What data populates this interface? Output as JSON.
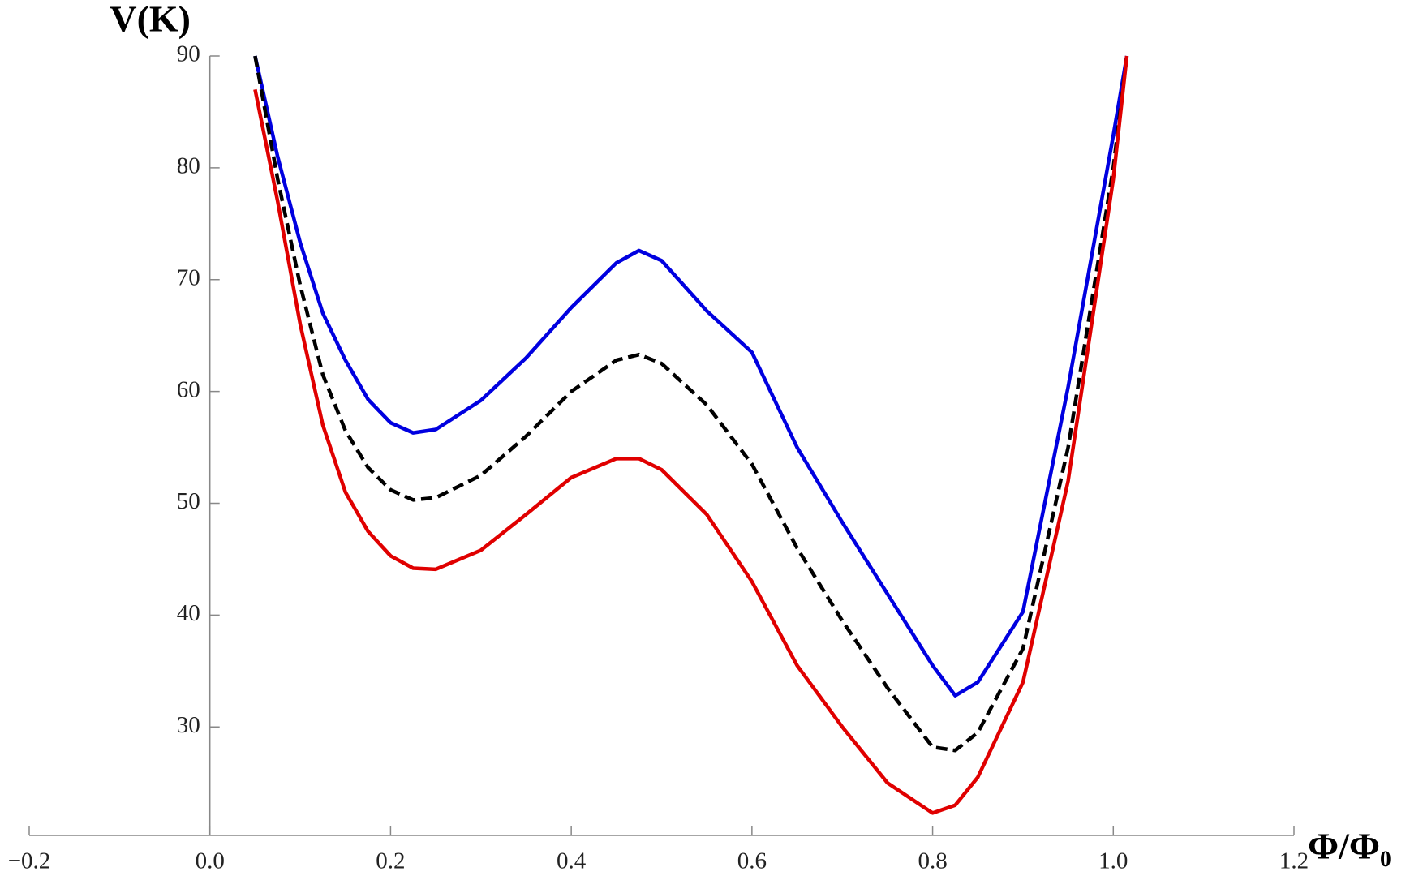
{
  "chart_data": {
    "type": "line",
    "ylabel": "V(K)",
    "xlabel": "Φ/Φ₀",
    "x": [
      0.05,
      0.075,
      0.1,
      0.125,
      0.15,
      0.175,
      0.2,
      0.225,
      0.25,
      0.3,
      0.35,
      0.4,
      0.45,
      0.475,
      0.5,
      0.55,
      0.6,
      0.65,
      0.7,
      0.75,
      0.8,
      0.825,
      0.85,
      0.9,
      0.95,
      1.0,
      1.015
    ],
    "series": [
      {
        "color": "#0000e0",
        "dashed": false,
        "values": [
          90,
          81,
          73.3,
          67,
          62.8,
          59.3,
          57.2,
          56.3,
          56.6,
          59.2,
          63,
          67.5,
          71.5,
          72.6,
          71.7,
          67.2,
          63.5,
          55,
          48.3,
          41.9,
          35.5,
          32.8,
          34,
          40.3,
          60.4,
          82.9,
          90
        ]
      },
      {
        "color": "#000000",
        "dashed": true,
        "values": [
          90,
          79,
          69.5,
          61.5,
          56.5,
          53.2,
          51.2,
          50.3,
          50.5,
          52.5,
          56,
          60,
          62.8,
          63.3,
          62.5,
          58.8,
          53.5,
          46,
          39.5,
          33.5,
          28.2,
          27.9,
          29.5,
          37,
          55,
          80,
          90
        ]
      },
      {
        "color": "#e00000",
        "dashed": false,
        "values": [
          87,
          77,
          66,
          57,
          51,
          47.5,
          45.3,
          44.2,
          44.1,
          45.8,
          49,
          52.3,
          54,
          54,
          53,
          49,
          43,
          35.5,
          30,
          25,
          22.3,
          23,
          25.5,
          34,
          52,
          79,
          90
        ]
      }
    ],
    "xlim": [
      -0.2,
      1.2
    ],
    "ylim": [
      20.3,
      90
    ],
    "xticks": [
      {
        "value": -0.2,
        "label": "−0.2"
      },
      {
        "value": 0,
        "label": "0.0"
      },
      0.2,
      0.4,
      0.6,
      0.8,
      {
        "value": 1,
        "label": "1.0"
      },
      1.2
    ],
    "yticks": [
      30,
      40,
      50,
      60,
      70,
      80,
      90
    ]
  }
}
